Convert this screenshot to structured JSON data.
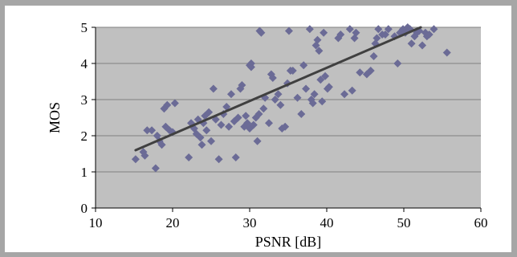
{
  "chart_data": {
    "type": "scatter",
    "xlabel": "PSNR [dB]",
    "ylabel": "MOS",
    "xlim": [
      10,
      60
    ],
    "ylim": [
      0,
      5
    ],
    "x_ticks": [
      10,
      20,
      30,
      40,
      50,
      60
    ],
    "y_ticks": [
      0,
      1,
      2,
      3,
      4,
      5
    ],
    "grid": "horizontal",
    "legend": "none",
    "colors": {
      "plot_background": "#c0c0c0",
      "marker": "#6b6b96",
      "trendline": "#404040",
      "gridline": "#808080"
    },
    "series": [
      {
        "marker": "diamond",
        "points": [
          [
            15.2,
            1.35
          ],
          [
            16.2,
            1.55
          ],
          [
            16.4,
            1.45
          ],
          [
            16.7,
            2.15
          ],
          [
            17.3,
            2.15
          ],
          [
            17.8,
            1.1
          ],
          [
            18.0,
            2.0
          ],
          [
            18.3,
            1.85
          ],
          [
            18.6,
            1.75
          ],
          [
            18.9,
            2.75
          ],
          [
            19.1,
            2.25
          ],
          [
            19.3,
            2.85
          ],
          [
            19.6,
            2.15
          ],
          [
            20.0,
            2.1
          ],
          [
            20.3,
            2.9
          ],
          [
            22.1,
            1.4
          ],
          [
            22.4,
            2.35
          ],
          [
            22.8,
            2.2
          ],
          [
            23.1,
            2.05
          ],
          [
            23.3,
            2.45
          ],
          [
            23.6,
            1.95
          ],
          [
            23.8,
            1.75
          ],
          [
            24.0,
            2.35
          ],
          [
            24.2,
            2.55
          ],
          [
            24.4,
            2.15
          ],
          [
            24.7,
            2.65
          ],
          [
            25.0,
            1.85
          ],
          [
            25.3,
            3.3
          ],
          [
            25.6,
            2.45
          ],
          [
            26.0,
            1.35
          ],
          [
            26.3,
            2.3
          ],
          [
            26.6,
            2.6
          ],
          [
            27.0,
            2.8
          ],
          [
            27.3,
            2.25
          ],
          [
            27.6,
            3.15
          ],
          [
            28.0,
            2.4
          ],
          [
            28.2,
            1.4
          ],
          [
            28.5,
            2.5
          ],
          [
            28.8,
            3.3
          ],
          [
            29.0,
            3.4
          ],
          [
            29.3,
            2.25
          ],
          [
            29.5,
            2.55
          ],
          [
            29.7,
            2.35
          ],
          [
            30.0,
            2.2
          ],
          [
            30.0,
            3.95
          ],
          [
            30.2,
            3.9
          ],
          [
            30.2,
            4.0
          ],
          [
            30.5,
            2.3
          ],
          [
            30.8,
            2.5
          ],
          [
            31.0,
            1.85
          ],
          [
            31.2,
            2.6
          ],
          [
            31.3,
            4.9
          ],
          [
            31.5,
            4.85
          ],
          [
            31.8,
            2.75
          ],
          [
            32.0,
            3.05
          ],
          [
            32.5,
            2.35
          ],
          [
            32.8,
            3.7
          ],
          [
            33.0,
            3.6
          ],
          [
            33.3,
            3.0
          ],
          [
            33.7,
            3.15
          ],
          [
            34.0,
            2.85
          ],
          [
            34.2,
            2.2
          ],
          [
            34.6,
            2.25
          ],
          [
            34.9,
            3.45
          ],
          [
            35.1,
            4.9
          ],
          [
            35.3,
            3.8
          ],
          [
            35.6,
            3.8
          ],
          [
            36.2,
            3.05
          ],
          [
            36.7,
            2.6
          ],
          [
            37.0,
            3.95
          ],
          [
            37.3,
            3.3
          ],
          [
            37.8,
            4.95
          ],
          [
            38.0,
            3.0
          ],
          [
            38.2,
            2.9
          ],
          [
            38.4,
            3.15
          ],
          [
            38.6,
            4.5
          ],
          [
            38.8,
            4.65
          ],
          [
            39.0,
            4.35
          ],
          [
            39.2,
            3.55
          ],
          [
            39.4,
            2.95
          ],
          [
            39.6,
            4.85
          ],
          [
            39.8,
            3.65
          ],
          [
            40.1,
            3.3
          ],
          [
            40.3,
            3.35
          ],
          [
            41.5,
            4.7
          ],
          [
            41.8,
            4.8
          ],
          [
            42.3,
            3.15
          ],
          [
            43.0,
            4.95
          ],
          [
            43.3,
            3.25
          ],
          [
            43.6,
            4.7
          ],
          [
            43.8,
            4.85
          ],
          [
            44.3,
            3.75
          ],
          [
            45.2,
            3.7
          ],
          [
            45.7,
            3.8
          ],
          [
            46.1,
            4.2
          ],
          [
            46.3,
            4.55
          ],
          [
            46.5,
            4.7
          ],
          [
            46.7,
            4.95
          ],
          [
            47.2,
            4.8
          ],
          [
            47.6,
            4.8
          ],
          [
            48.0,
            4.95
          ],
          [
            48.8,
            4.75
          ],
          [
            49.2,
            4.0
          ],
          [
            49.5,
            4.85
          ],
          [
            49.9,
            4.95
          ],
          [
            50.2,
            4.85
          ],
          [
            50.5,
            5.0
          ],
          [
            50.8,
            4.95
          ],
          [
            51.0,
            4.55
          ],
          [
            51.4,
            4.75
          ],
          [
            51.7,
            4.85
          ],
          [
            52.0,
            4.9
          ],
          [
            52.4,
            4.5
          ],
          [
            52.8,
            4.85
          ],
          [
            53.0,
            4.75
          ],
          [
            53.3,
            4.8
          ],
          [
            53.9,
            4.95
          ],
          [
            55.6,
            4.3
          ]
        ]
      }
    ],
    "trendline": {
      "type": "linear",
      "x": [
        15.2,
        52.2
      ],
      "y": [
        1.6,
        5.0
      ]
    }
  }
}
